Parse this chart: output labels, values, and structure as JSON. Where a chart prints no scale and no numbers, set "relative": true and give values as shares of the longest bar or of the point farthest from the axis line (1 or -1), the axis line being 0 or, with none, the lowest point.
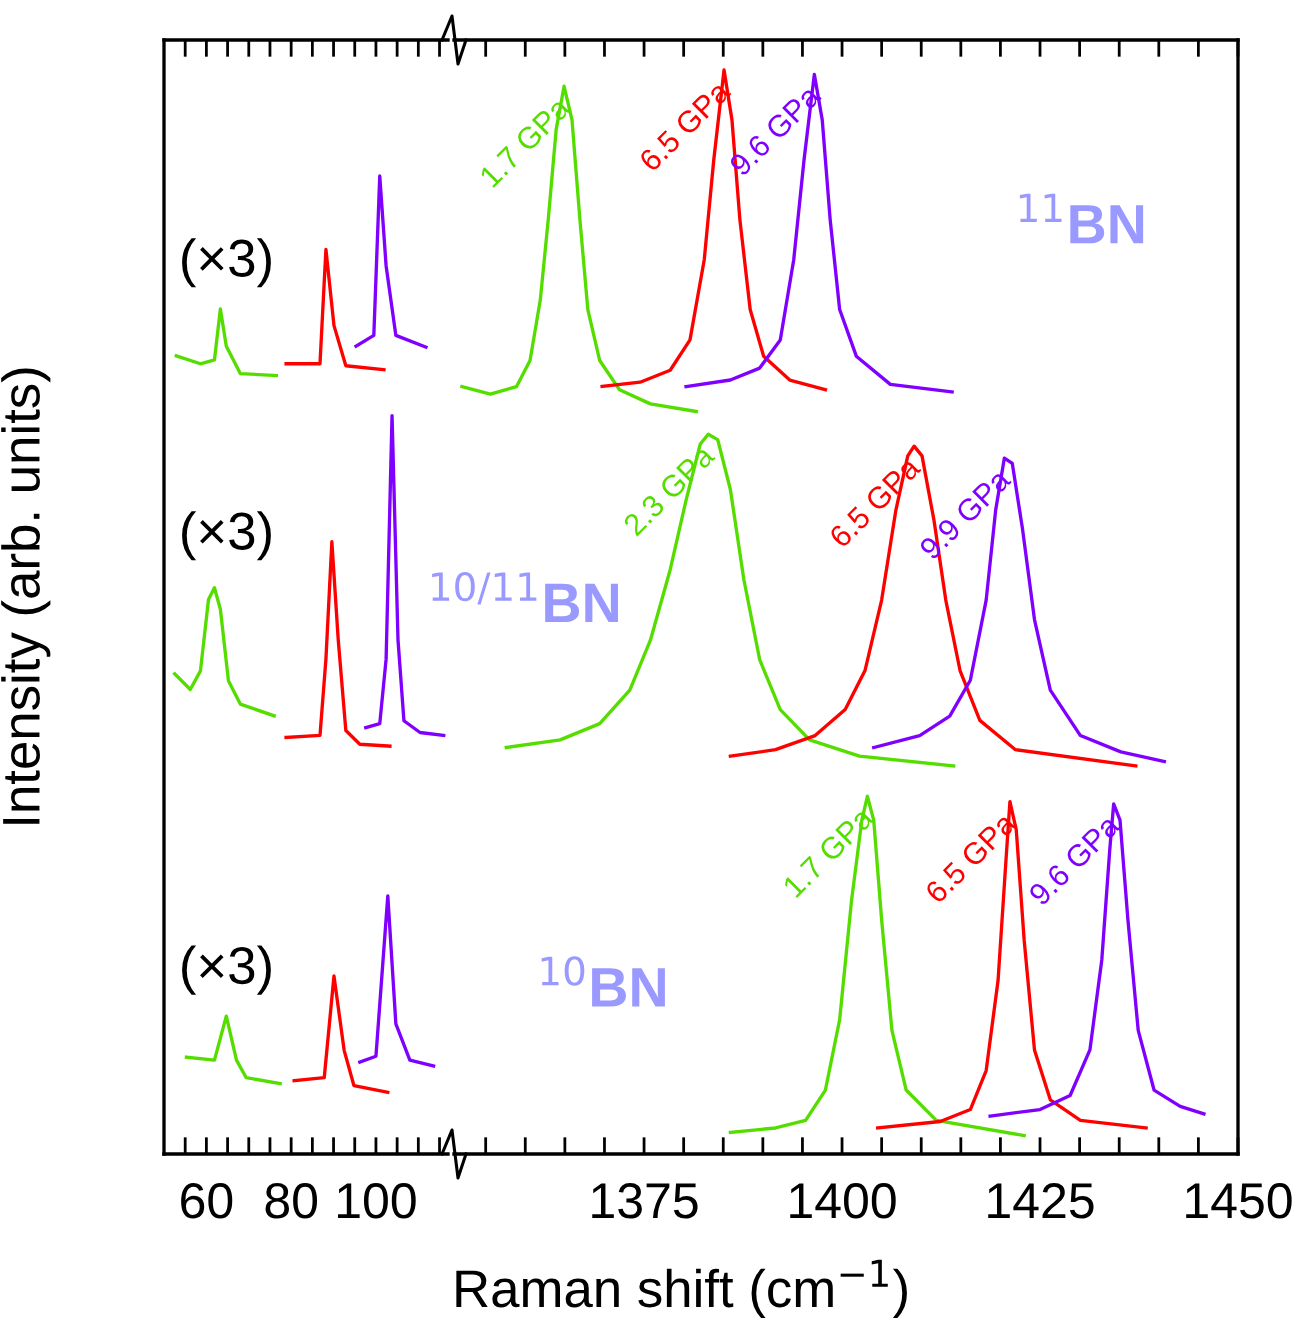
{
  "chart_data": [
    {
      "type": "line",
      "relative": true,
      "ylabel": "Intensity (arb. units)",
      "xlim": [
        50,
        117
      ],
      "xticks": [
        {
          "value": 55,
          "label": null
        },
        60,
        {
          "value": 65,
          "label": null
        },
        {
          "value": 70,
          "label": null
        },
        {
          "value": 75,
          "label": null
        },
        80,
        {
          "value": 85,
          "label": null
        },
        {
          "value": 90,
          "label": null
        },
        {
          "value": 95,
          "label": null
        },
        100,
        {
          "value": 105,
          "label": null
        },
        {
          "value": 110,
          "label": null
        },
        {
          "value": 115,
          "label": null
        }
      ],
      "tick_labels": "x",
      "grid": false,
      "legend": false,
      "marker": "none",
      "line_style": "solid",
      "annotations": [
        "(×3)",
        "(×3)",
        "(×3)"
      ],
      "series": [
        {
          "color": "#55dd00",
          "x": [
            52.9,
            58.6,
            61.9,
            63.3,
            64.7,
            68.0,
            76.5
          ],
          "values": [
            0.816,
            0.808,
            0.812,
            0.864,
            0.826,
            0.798,
            0.796
          ]
        },
        {
          "color": "#ff0000",
          "x": [
            78.8,
            86.8,
            88.2,
            90.1,
            92.9,
            101.9
          ],
          "values": [
            0.808,
            0.808,
            0.925,
            0.847,
            0.806,
            0.802
          ]
        },
        {
          "color": "#7f00ff",
          "x": [
            95.3,
            99.5,
            100.9,
            102.4,
            104.7,
            111.8
          ],
          "values": [
            0.826,
            0.837,
            1.0,
            0.908,
            0.837,
            0.825
          ]
        },
        {
          "color": "#55dd00",
          "x": [
            52.5,
            56.2,
            58.6,
            60.5,
            61.9,
            63.3,
            65.2,
            68.0,
            76.0
          ],
          "values": [
            0.491,
            0.475,
            0.494,
            0.567,
            0.579,
            0.557,
            0.484,
            0.46,
            0.448
          ]
        },
        {
          "color": "#ff0000",
          "x": [
            78.8,
            86.8,
            88.2,
            89.6,
            91.1,
            92.9,
            96.2,
            103.3
          ],
          "values": [
            0.426,
            0.428,
            0.506,
            0.626,
            0.526,
            0.433,
            0.419,
            0.417
          ]
        },
        {
          "color": "#7f00ff",
          "x": [
            97.6,
            100.9,
            102.4,
            103.8,
            105.2,
            106.6,
            110.4,
            116.0
          ],
          "values": [
            0.436,
            0.44,
            0.506,
            0.755,
            0.526,
            0.443,
            0.431,
            0.428
          ]
        },
        {
          "color": "#55dd00",
          "x": [
            55.3,
            61.9,
            64.7,
            67.1,
            69.4,
            77.4
          ],
          "values": [
            0.099,
            0.096,
            0.141,
            0.096,
            0.078,
            0.072
          ]
        },
        {
          "color": "#ff0000",
          "x": [
            80.7,
            87.8,
            90.1,
            92.5,
            94.8,
            102.8
          ],
          "values": [
            0.075,
            0.078,
            0.182,
            0.106,
            0.07,
            0.063
          ]
        },
        {
          "color": "#7f00ff",
          "x": [
            96.2,
            100.0,
            102.8,
            104.7,
            108.0,
            113.6
          ],
          "values": [
            0.094,
            0.1,
            0.264,
            0.133,
            0.096,
            0.09
          ]
        }
      ]
    },
    {
      "type": "line",
      "relative": true,
      "xlabel": "Raman shift (cm$^{−1}$)",
      "xlim": [
        1351,
        1450
      ],
      "xticks": [
        {
          "value": 1355,
          "label": null
        },
        {
          "value": 1360,
          "label": null
        },
        {
          "value": 1365,
          "label": null
        },
        {
          "value": 1370,
          "label": null
        },
        1375,
        {
          "value": 1380,
          "label": null
        },
        {
          "value": 1385,
          "label": null
        },
        {
          "value": 1390,
          "label": null
        },
        {
          "value": 1395,
          "label": null
        },
        1400,
        {
          "value": 1405,
          "label": null
        },
        {
          "value": 1410,
          "label": null
        },
        {
          "value": 1415,
          "label": null
        },
        {
          "value": 1420,
          "label": null
        },
        1425,
        {
          "value": 1430,
          "label": null
        },
        {
          "value": 1435,
          "label": null
        },
        {
          "value": 1440,
          "label": null
        },
        {
          "value": 1445,
          "label": null
        },
        1450
      ],
      "tick_labels": "x",
      "grid": false,
      "legend": false,
      "marker": "none",
      "line_style": "solid",
      "annotations": [
        "$^{11}$BN",
        "$^{10/11}$BN",
        "$^{10}$BN"
      ],
      "series": [
        {
          "name": "1.7 GPa",
          "color": "#55dd00",
          "x": [
            1352,
            1355.6,
            1358.9,
            1360.6,
            1361.9,
            1362.9,
            1363.9,
            1364.9,
            1365.9,
            1366.9,
            1367.9,
            1369.4,
            1371.9,
            1375.8,
            1381.6
          ],
          "values": [
            0.708,
            0.701,
            0.708,
            0.732,
            0.788,
            0.862,
            0.945,
            0.985,
            0.954,
            0.862,
            0.779,
            0.732,
            0.705,
            0.692,
            0.685
          ]
        },
        {
          "name": "6.5 GPa",
          "color": "#ff0000",
          "x": [
            1369.7,
            1374.5,
            1378.3,
            1380.8,
            1382.6,
            1383.8,
            1385.1,
            1386.1,
            1387.1,
            1388.4,
            1390.1,
            1393.4,
            1397.9
          ],
          "values": [
            0.708,
            0.712,
            0.723,
            0.751,
            0.825,
            0.917,
            1.0,
            0.954,
            0.862,
            0.779,
            0.736,
            0.714,
            0.705
          ]
        },
        {
          "name": "9.6 GPa",
          "color": "#7f00ff",
          "x": [
            1380.3,
            1385.9,
            1389.6,
            1392.2,
            1393.9,
            1395.2,
            1396.5,
            1397.5,
            1398.5,
            1399.7,
            1401.8,
            1406.1,
            1413.9
          ],
          "values": [
            0.708,
            0.714,
            0.725,
            0.751,
            0.825,
            0.917,
            0.996,
            0.954,
            0.862,
            0.779,
            0.736,
            0.71,
            0.703
          ]
        },
        {
          "name": "2.3 GPa",
          "color": "#55dd00",
          "x": [
            1357.6,
            1364.4,
            1369.4,
            1373.2,
            1375.8,
            1378.3,
            1380.3,
            1382.1,
            1383.1,
            1384.3,
            1385.9,
            1387.6,
            1389.6,
            1392.2,
            1395.9,
            1402.2,
            1414.1
          ],
          "values": [
            0.375,
            0.382,
            0.397,
            0.428,
            0.474,
            0.539,
            0.603,
            0.655,
            0.664,
            0.659,
            0.613,
            0.53,
            0.456,
            0.41,
            0.382,
            0.367,
            0.358
          ]
        },
        {
          "name": "6.5 GPa",
          "color": "#ff0000",
          "x": [
            1385.9,
            1391.6,
            1396.6,
            1400.4,
            1402.9,
            1405.0,
            1406.8,
            1408.3,
            1409.1,
            1410.1,
            1411.6,
            1413.1,
            1414.9,
            1417.4,
            1421.9,
            1437.1
          ],
          "values": [
            0.367,
            0.373,
            0.386,
            0.41,
            0.446,
            0.511,
            0.594,
            0.644,
            0.653,
            0.644,
            0.585,
            0.511,
            0.446,
            0.4,
            0.373,
            0.358
          ]
        },
        {
          "name": "9.9 GPa",
          "color": "#7f00ff",
          "x": [
            1404.0,
            1409.8,
            1413.6,
            1416.2,
            1418.2,
            1419.4,
            1420.5,
            1421.5,
            1422.8,
            1424.3,
            1426.3,
            1430.1,
            1435.2,
            1440.7
          ],
          "values": [
            0.375,
            0.386,
            0.404,
            0.437,
            0.511,
            0.594,
            0.642,
            0.637,
            0.576,
            0.493,
            0.428,
            0.386,
            0.371,
            0.362
          ]
        },
        {
          "name": "1.7 GPa",
          "color": "#55dd00",
          "x": [
            1385.9,
            1391.6,
            1395.4,
            1397.9,
            1399.7,
            1401.2,
            1402.5,
            1403.2,
            1404.0,
            1405.0,
            1406.3,
            1408.1,
            1411.9,
            1423.0
          ],
          "values": [
            0.02,
            0.024,
            0.031,
            0.059,
            0.124,
            0.234,
            0.308,
            0.33,
            0.308,
            0.216,
            0.114,
            0.059,
            0.031,
            0.017
          ]
        },
        {
          "name": "6.5 GPa",
          "color": "#ff0000",
          "x": [
            1404.5,
            1412.4,
            1416.2,
            1418.2,
            1419.7,
            1420.7,
            1421.2,
            1422.0,
            1423.0,
            1424.3,
            1426.3,
            1430.1,
            1438.4
          ],
          "values": [
            0.024,
            0.03,
            0.041,
            0.077,
            0.16,
            0.271,
            0.325,
            0.299,
            0.197,
            0.096,
            0.05,
            0.031,
            0.024
          ]
        },
        {
          "name": "9.6 GPa",
          "color": "#7f00ff",
          "x": [
            1418.7,
            1425.0,
            1428.8,
            1431.3,
            1432.8,
            1433.8,
            1434.3,
            1435.1,
            1436.1,
            1437.4,
            1439.4,
            1442.7,
            1445.7
          ],
          "values": [
            0.035,
            0.041,
            0.054,
            0.096,
            0.179,
            0.28,
            0.323,
            0.308,
            0.216,
            0.114,
            0.059,
            0.044,
            0.037
          ]
        }
      ]
    }
  ]
}
